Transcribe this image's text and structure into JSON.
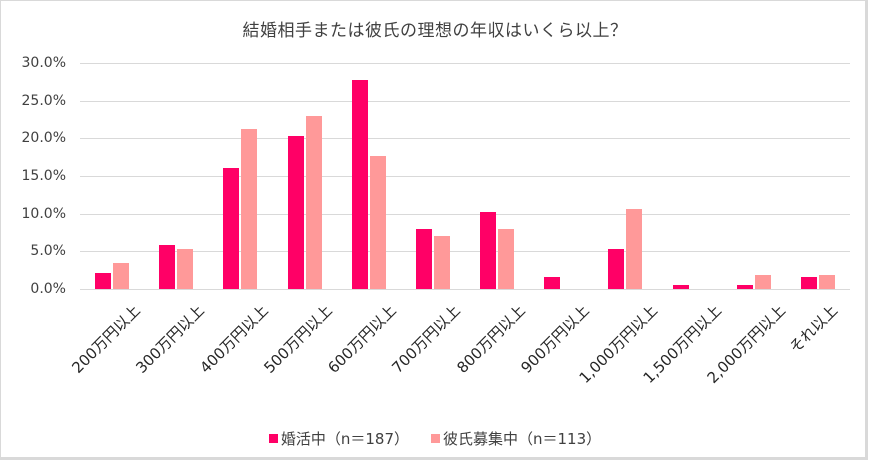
{
  "chart_data": {
    "type": "bar",
    "title": "結婚相手または彼氏の理想の年収はいくら以上？",
    "xlabel": "",
    "ylabel": "",
    "ylim": [
      0,
      30
    ],
    "yticks": [
      "0.0%",
      "5.0%",
      "10.0%",
      "15.0%",
      "20.0%",
      "25.0%",
      "30.0%"
    ],
    "grid": true,
    "legend_position": "bottom",
    "categories": [
      "200万円以上",
      "300万円以上",
      "400万円以上",
      "500万円以上",
      "600万円以上",
      "700万円以上",
      "800万円以上",
      "900万円以上",
      "1,000万円以上",
      "1,500万円以上",
      "2,000万円以上",
      "それ以上"
    ],
    "series": [
      {
        "name": "婚活中(n=187)",
        "color": "#ff0066",
        "values": [
          2.1,
          5.9,
          16.0,
          20.3,
          27.8,
          8.0,
          10.2,
          1.6,
          5.3,
          0.5,
          0.5,
          1.6
        ]
      },
      {
        "name": "彼氏募集中(n=113)",
        "color": "#ff9999",
        "values": [
          3.5,
          5.3,
          21.2,
          23.0,
          17.7,
          7.1,
          8.0,
          0.0,
          10.6,
          0.0,
          1.8,
          1.8
        ]
      }
    ]
  },
  "legend": {
    "items": [
      {
        "label": "婚活中（n＝187）",
        "color": "#ff0066"
      },
      {
        "label": "彼氏募集中（n＝113）",
        "color": "#ff9999"
      }
    ]
  }
}
